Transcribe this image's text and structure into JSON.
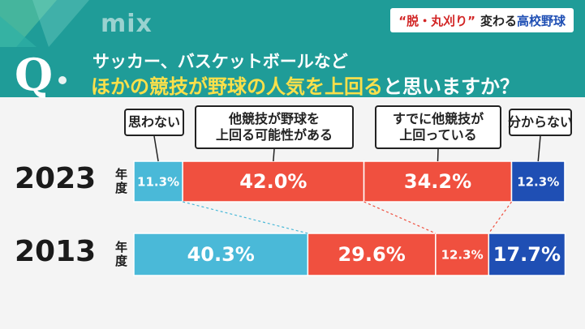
{
  "header": {
    "logo_text": "mix",
    "topic_part1": "“脱・丸刈り”",
    "topic_part2": "変わる",
    "topic_part3": "高校野球"
  },
  "question": {
    "mark": "Q",
    "line1": "サッカー、バスケットボールなど",
    "line2_highlight": "ほかの競技が野球の人気を上回る",
    "line2_rest": "と思いますか？"
  },
  "colors": {
    "header_bg": "#1f9c98",
    "highlight_text": "#fbe04a",
    "cat_no": "#4ab9d8",
    "cat_possible": "#f0503f",
    "cat_already": "#f0503f",
    "cat_unknown": "#1f4fb4"
  },
  "chart_data": {
    "type": "bar",
    "orientation": "horizontal",
    "stacked": true,
    "normalized": true,
    "categories": [
      "2023",
      "2013"
    ],
    "category_suffix": "年度",
    "series": [
      {
        "name": "思わない",
        "values": [
          11.3,
          40.3
        ],
        "labels": [
          "11.3%",
          "40.3%"
        ],
        "color": "#4ab9d8"
      },
      {
        "name": "他競技が野球を上回る可能性がある",
        "values": [
          42.0,
          29.6
        ],
        "labels": [
          "42.0%",
          "29.6%"
        ],
        "color": "#f0503f"
      },
      {
        "name": "すでに他競技が上回っている",
        "values": [
          34.2,
          12.3
        ],
        "labels": [
          "34.2%",
          "12.3%"
        ],
        "color": "#f0503f"
      },
      {
        "name": "分からない",
        "values": [
          12.3,
          17.7
        ],
        "labels": [
          "12.3%",
          "17.7%"
        ],
        "color": "#1f4fb4"
      }
    ],
    "legend_lines": [
      [
        "思わない"
      ],
      [
        "他競技が野球を",
        "上回る可能性がある"
      ],
      [
        "すでに他競技が",
        "上回っている"
      ],
      [
        "分からない"
      ]
    ],
    "legend_placement": "top",
    "xlim": [
      0,
      100
    ]
  }
}
